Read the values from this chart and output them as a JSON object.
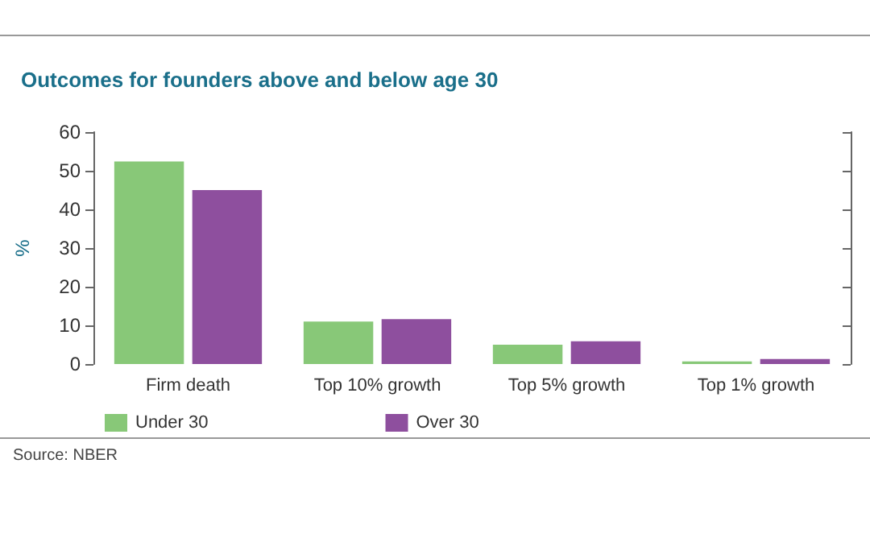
{
  "chart_data": {
    "type": "bar",
    "title": "Outcomes for founders above and below age 30",
    "ylabel": "%",
    "categories": [
      "Firm death",
      "Top 10% growth",
      "Top 5% growth",
      "Top 1% growth"
    ],
    "series": [
      {
        "name": "Under 30",
        "color": "#88c878",
        "values": [
          52.4,
          11.0,
          5.0,
          0.7
        ]
      },
      {
        "name": "Over 30",
        "color": "#8e4f9e",
        "values": [
          45.0,
          11.6,
          5.9,
          1.3
        ]
      }
    ],
    "ylim": [
      0,
      60
    ],
    "yticks": [
      0,
      10,
      20,
      30,
      40,
      50,
      60
    ],
    "grid": false,
    "legend": "bottom left",
    "annotations": [
      "Source: NBER"
    ]
  }
}
